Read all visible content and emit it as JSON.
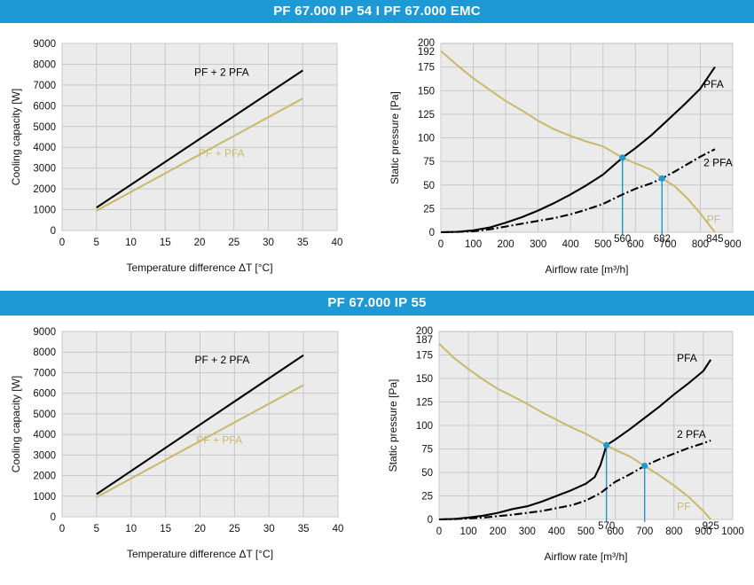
{
  "banners": {
    "top": "PF 67.000 IP 54 I PF 67.000 EMC",
    "bottom": "PF 67.000 IP 55"
  },
  "colors": {
    "banner": "#1d9ad6",
    "black_line": "#000000",
    "tan_line": "#c9bb6d",
    "operating_point": "#1d9ad6",
    "plot_bg": "#ebebeb"
  },
  "chart_data": [
    {
      "id": "cool_top",
      "type": "line",
      "title": "",
      "xlabel": "Temperature difference ΔT [°C]",
      "ylabel": "Cooling capacity [W]",
      "xlim": [
        0,
        40
      ],
      "ylim": [
        0,
        9000
      ],
      "xticks": [
        0,
        5,
        10,
        15,
        20,
        25,
        30,
        35,
        40
      ],
      "yticks": [
        0,
        1000,
        2000,
        3000,
        4000,
        5000,
        6000,
        7000,
        8000,
        9000
      ],
      "grid": true,
      "series": [
        {
          "name": "PF + 2 PFA",
          "color": "#000000",
          "style": "solid",
          "x": [
            5,
            35
          ],
          "y": [
            1100,
            7700
          ],
          "label_x": 23.2,
          "label_y": 7450
        },
        {
          "name": "PF + PFA",
          "color": "#c9bb6d",
          "style": "solid",
          "x": [
            5,
            35
          ],
          "y": [
            950,
            6350
          ],
          "label_x": 23.2,
          "label_y": 3550
        }
      ],
      "ticklabels": []
    },
    {
      "id": "press_top",
      "type": "line",
      "title": "",
      "xlabel": "Airflow rate [m³/h]",
      "ylabel": "Static pressure [Pa]",
      "xlim": [
        0,
        900
      ],
      "ylim": [
        0,
        200
      ],
      "xticks": [
        0,
        100,
        200,
        300,
        400,
        500,
        600,
        700,
        800,
        900
      ],
      "yticks": [
        0,
        25,
        50,
        75,
        100,
        125,
        150,
        175
      ],
      "ytick_top_labels": [
        "200",
        "192"
      ],
      "extra_xtick_labels": [
        "560",
        "682",
        "845"
      ],
      "grid": true,
      "series": [
        {
          "name": "PF",
          "color": "#c9bb6d",
          "style": "solid",
          "x": [
            0,
            50,
            100,
            150,
            200,
            250,
            300,
            350,
            400,
            450,
            500,
            560,
            600,
            650,
            682,
            720,
            760,
            800,
            845
          ],
          "y": [
            192,
            177,
            163,
            151,
            139,
            129,
            118,
            109,
            102,
            96,
            91,
            79,
            73,
            66,
            57,
            49,
            36,
            20,
            0
          ],
          "label_x": 820,
          "label_y": 10
        },
        {
          "name": "PFA",
          "color": "#000000",
          "style": "solid",
          "x": [
            0,
            50,
            100,
            150,
            200,
            250,
            300,
            350,
            400,
            450,
            500,
            560,
            600,
            650,
            700,
            750,
            800,
            845
          ],
          "y": [
            0,
            0.5,
            2,
            5,
            10,
            16,
            23,
            31,
            40,
            50,
            61,
            79,
            89,
            103,
            119,
            135,
            152,
            175
          ],
          "label_x": 810,
          "label_y": 153
        },
        {
          "name": "2 PFA",
          "color": "#000000",
          "style": "dashdot",
          "x": [
            0,
            50,
            100,
            150,
            200,
            250,
            300,
            350,
            400,
            450,
            500,
            560,
            600,
            650,
            682,
            720,
            760,
            800,
            845
          ],
          "y": [
            0,
            0.3,
            1,
            3,
            6,
            9,
            12,
            15,
            19,
            24,
            30,
            40,
            46,
            52,
            57,
            64,
            72,
            80,
            88
          ],
          "label_x": 810,
          "label_y": 70
        }
      ],
      "operating_points": [
        {
          "x": 560,
          "y": 79
        },
        {
          "x": 682,
          "y": 57
        }
      ],
      "vlines": [
        {
          "x": 560,
          "y": 79
        },
        {
          "x": 682,
          "y": 57
        }
      ]
    },
    {
      "id": "cool_bot",
      "type": "line",
      "title": "",
      "xlabel": "Temperature difference ΔT [°C]",
      "ylabel": "Cooling capacity [W]",
      "xlim": [
        0,
        40
      ],
      "ylim": [
        0,
        9000
      ],
      "xticks": [
        0,
        5,
        10,
        15,
        20,
        25,
        30,
        35,
        40
      ],
      "yticks": [
        0,
        1000,
        2000,
        3000,
        4000,
        5000,
        6000,
        7000,
        8000,
        9000
      ],
      "grid": true,
      "series": [
        {
          "name": "PF + 2 PFA",
          "color": "#000000",
          "style": "solid",
          "x": [
            5,
            35
          ],
          "y": [
            1100,
            7850
          ],
          "label_x": 23.2,
          "label_y": 7450
        },
        {
          "name": "PF + PFA",
          "color": "#c9bb6d",
          "style": "solid",
          "x": [
            5,
            35
          ],
          "y": [
            950,
            6400
          ],
          "label_x": 22.8,
          "label_y": 3550
        }
      ]
    },
    {
      "id": "press_bot",
      "type": "line",
      "title": "",
      "xlabel": "Airflow rate [m³/h]",
      "ylabel": "Static pressure [Pa]",
      "xlim": [
        0,
        1000
      ],
      "ylim": [
        0,
        200
      ],
      "xticks": [
        0,
        100,
        200,
        300,
        400,
        500,
        600,
        700,
        800,
        900,
        1000
      ],
      "yticks": [
        0,
        25,
        50,
        75,
        100,
        125,
        150,
        175
      ],
      "ytick_top_labels": [
        "200",
        "187"
      ],
      "extra_xtick_labels": [
        "570",
        "925"
      ],
      "grid": true,
      "series": [
        {
          "name": "PF",
          "color": "#c9bb6d",
          "style": "solid",
          "x": [
            0,
            50,
            100,
            150,
            200,
            250,
            300,
            350,
            400,
            450,
            500,
            570,
            600,
            650,
            700,
            750,
            800,
            850,
            900,
            925
          ],
          "y": [
            187,
            172,
            160,
            149,
            139,
            131,
            123,
            114,
            106,
            98,
            91,
            79,
            74,
            67,
            57,
            47,
            36,
            24,
            9,
            0
          ],
          "label_x": 810,
          "label_y": 10
        },
        {
          "name": "PFA",
          "color": "#000000",
          "style": "solid",
          "x": [
            0,
            50,
            100,
            150,
            200,
            250,
            300,
            350,
            400,
            450,
            500,
            530,
            550,
            570,
            600,
            650,
            700,
            750,
            800,
            850,
            900,
            925
          ],
          "y": [
            0,
            0.5,
            2,
            4,
            7,
            11,
            14,
            19,
            25,
            31,
            38,
            45,
            58,
            79,
            85,
            96,
            108,
            120,
            133,
            145,
            158,
            170
          ],
          "label_x": 810,
          "label_y": 168
        },
        {
          "name": "2 PFA",
          "color": "#000000",
          "style": "dashdot",
          "x": [
            0,
            50,
            100,
            150,
            200,
            250,
            300,
            350,
            400,
            450,
            500,
            550,
            570,
            600,
            650,
            700,
            750,
            800,
            850,
            900,
            925
          ],
          "y": [
            0,
            0.3,
            1,
            2,
            3.5,
            5,
            7,
            9,
            12,
            15,
            20,
            28,
            33,
            40,
            48,
            57,
            64,
            70,
            76,
            81,
            84
          ],
          "label_x": 810,
          "label_y": 87
        }
      ],
      "operating_points": [
        {
          "x": 570,
          "y": 79
        },
        {
          "x": 700,
          "y": 57
        }
      ],
      "vlines": [
        {
          "x": 570,
          "y": 79
        },
        {
          "x": 700,
          "y": 57
        }
      ]
    }
  ]
}
